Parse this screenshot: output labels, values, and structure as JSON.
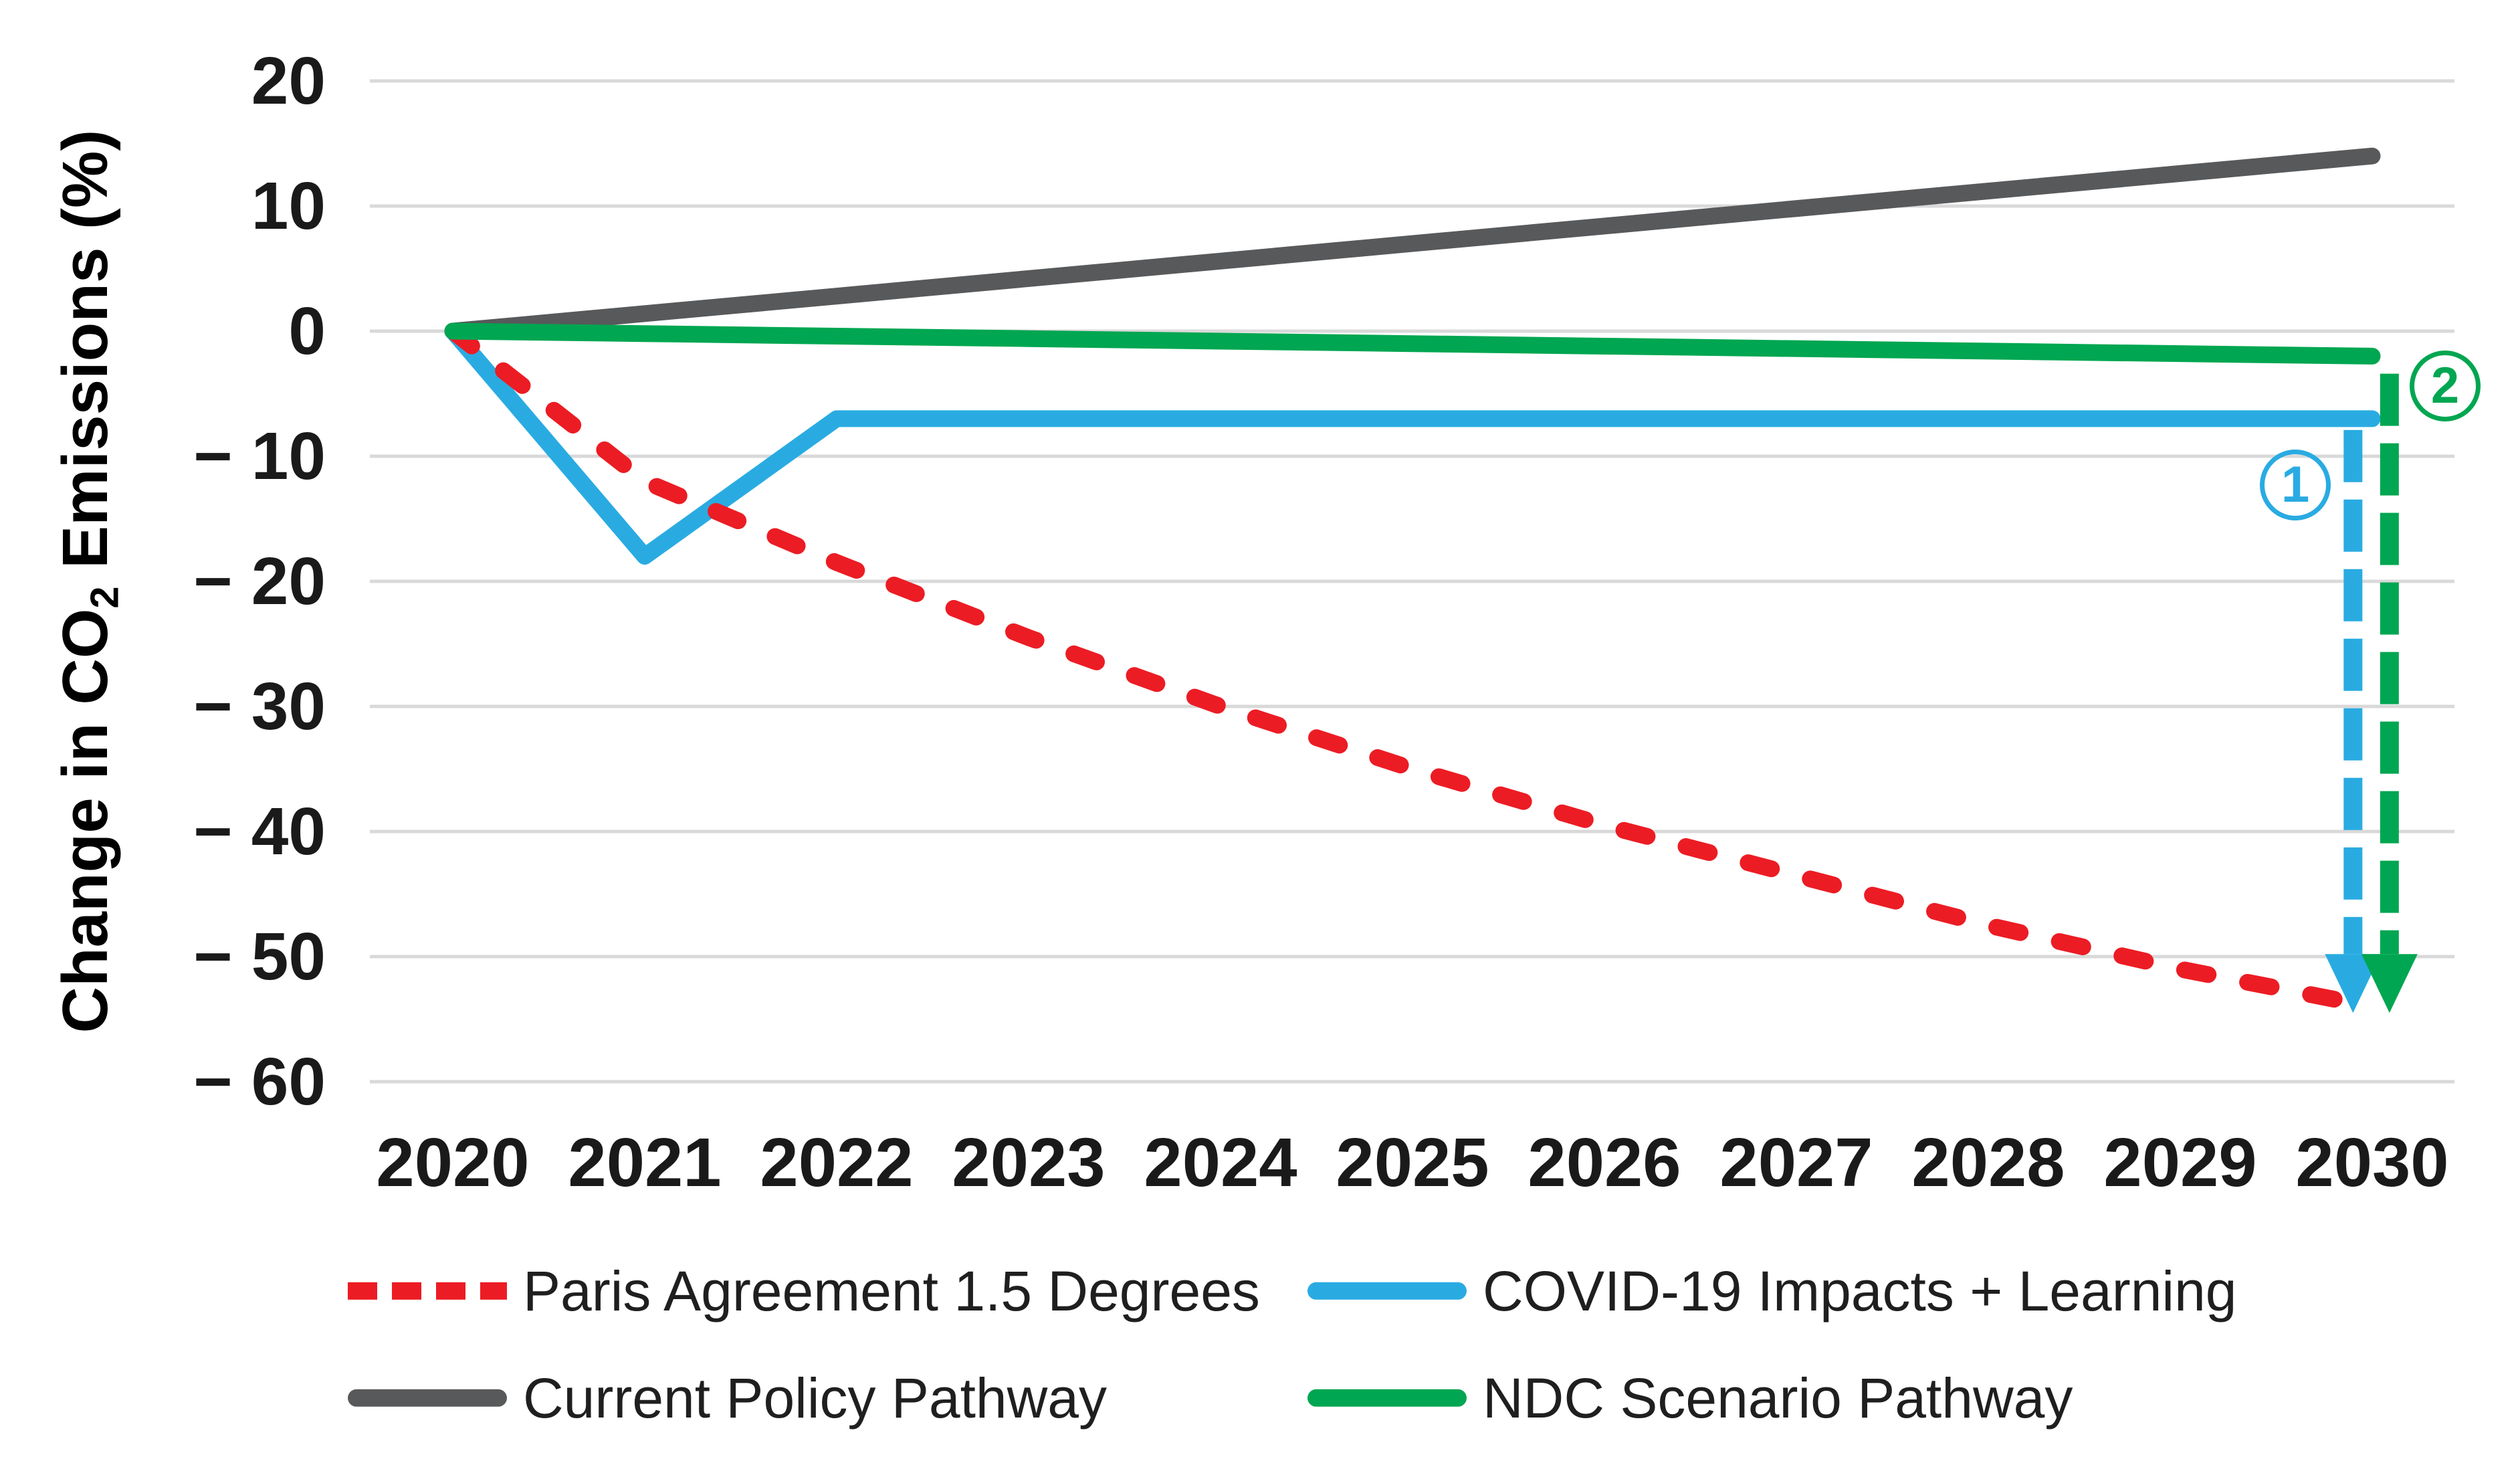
{
  "y_axis": {
    "title_prefix": "Change in CO",
    "title_sub": "2",
    "title_suffix": " Emissions (%)"
  },
  "legend": [
    {
      "label": "Paris Agreement 1.5 Degrees",
      "color": "#EC1C24",
      "dash": true
    },
    {
      "label": "COVID-19 Impacts + Learning",
      "color": "#29ABE2",
      "dash": false
    },
    {
      "label": "Current Policy Pathway",
      "color": "#58595B",
      "dash": false
    },
    {
      "label": "NDC Scenario Pathway",
      "color": "#00A651",
      "dash": false
    }
  ],
  "annotations": {
    "arrows": [
      {
        "name": "covid-drop-arrow",
        "color": "#29ABE2",
        "x_year": 2029.9,
        "from_value": -7.9,
        "head_top_value": -49.8,
        "tip_value": -54.5,
        "badge": {
          "text": "1",
          "year": 2029.6,
          "value": -12.3,
          "color": "#29ABE2"
        }
      },
      {
        "name": "ndc-drop-arrow",
        "color": "#00A651",
        "x_year": 2030.09,
        "from_value": -3.4,
        "head_top_value": -49.8,
        "tip_value": -54.5,
        "badge": {
          "text": "2",
          "year": 2030.38,
          "value": -4.4,
          "color": "#00A651"
        }
      }
    ]
  },
  "chart_data": {
    "type": "line",
    "x": [
      2020,
      2021,
      2022,
      2023,
      2024,
      2025,
      2026,
      2027,
      2028,
      2029,
      2030
    ],
    "series": [
      {
        "name": "Paris Agreement 1.5 Degrees",
        "color": "#EC1C24",
        "dash": true,
        "values": [
          0,
          -12,
          -18.5,
          -24.5,
          -30,
          -35,
          -39.5,
          -43.5,
          -47.5,
          -51,
          -54
        ]
      },
      {
        "name": "COVID-19 Impacts + Learning",
        "color": "#29ABE2",
        "dash": false,
        "values": [
          0,
          -18,
          -7,
          -7,
          -7,
          -7,
          -7,
          -7,
          -7,
          -7,
          -7
        ]
      },
      {
        "name": "Current Policy Pathway",
        "color": "#58595B",
        "dash": false,
        "values": [
          0,
          1.4,
          2.8,
          4.2,
          5.6,
          7,
          8.4,
          9.8,
          11.2,
          12.6,
          14
        ]
      },
      {
        "name": "NDC Scenario Pathway",
        "color": "#00A651",
        "dash": false,
        "values": [
          0,
          -0.2,
          -0.4,
          -0.6,
          -0.8,
          -1,
          -1.2,
          -1.4,
          -1.6,
          -1.8,
          -2
        ]
      }
    ],
    "title": "",
    "xlabel": "",
    "ylabel": "Change in CO2 Emissions (%)",
    "ylim": [
      -60,
      20
    ],
    "yticks": [
      20,
      10,
      0,
      -10,
      -20,
      -30,
      -40,
      -50,
      -60
    ],
    "grid": true,
    "legend_position": "bottom",
    "gridline_color": "#D9D9D9"
  }
}
